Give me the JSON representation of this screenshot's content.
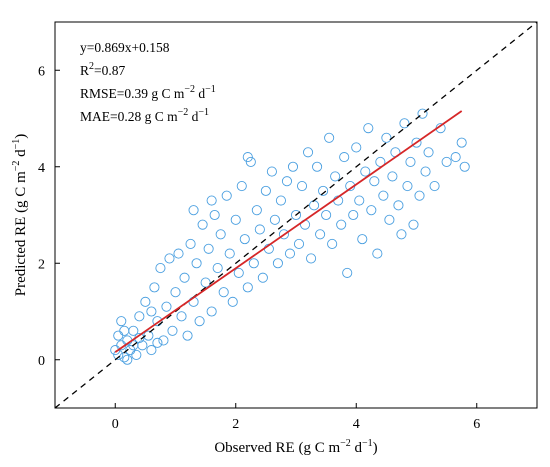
{
  "chart_data": {
    "type": "scatter",
    "x_label": [
      "Observed RE (g C m",
      "−2",
      " d",
      "−1",
      ")"
    ],
    "y_label": [
      "Predicted RE (g C m",
      "−2",
      " d",
      "−1",
      ")"
    ],
    "annotations": [
      [
        "y=0.869x+0.158"
      ],
      [
        "R",
        "2",
        "=0.87"
      ],
      [
        "RMSE=0.39 g C m",
        "−2",
        " d",
        "−1"
      ],
      [
        "MAE=0.28 g C m",
        "−2",
        " d",
        "−1"
      ]
    ],
    "xlim": [
      -1,
      7
    ],
    "ylim": [
      -1,
      7
    ],
    "xticks": [
      0,
      2,
      4,
      6
    ],
    "yticks": [
      0,
      2,
      4,
      6
    ],
    "series": [
      {
        "color": "#4a9fe0",
        "x": [
          0.05,
          0.1,
          0.15,
          0.2,
          0.25,
          0.3,
          0.1,
          0.35,
          0.4,
          0.45,
          0.5,
          0.55,
          0.6,
          0.65,
          0.7,
          0.75,
          0.8,
          0.85,
          0.9,
          0.95,
          1.0,
          1.05,
          1.1,
          1.15,
          1.2,
          1.25,
          1.3,
          1.35,
          1.4,
          1.45,
          1.5,
          1.55,
          1.6,
          1.65,
          1.7,
          1.75,
          1.8,
          1.85,
          1.9,
          1.95,
          2.0,
          2.05,
          2.1,
          2.15,
          2.2,
          2.25,
          2.3,
          2.35,
          2.4,
          2.45,
          2.5,
          2.55,
          2.6,
          2.65,
          2.7,
          2.75,
          2.8,
          2.85,
          2.9,
          2.95,
          3.0,
          3.05,
          3.1,
          3.15,
          3.2,
          3.25,
          3.3,
          3.35,
          3.4,
          3.45,
          3.5,
          3.55,
          3.6,
          3.65,
          3.7,
          3.75,
          3.8,
          3.85,
          3.9,
          3.95,
          4.0,
          4.05,
          4.1,
          4.15,
          4.2,
          4.25,
          4.3,
          4.35,
          4.4,
          4.45,
          4.5,
          4.55,
          4.6,
          4.65,
          4.7,
          4.75,
          4.8,
          4.85,
          4.9,
          4.95,
          5.0,
          5.05,
          5.1,
          5.15,
          5.2,
          5.3,
          5.4,
          5.5,
          5.65,
          5.75,
          5.8,
          0.05,
          0.2,
          0.3,
          0.0,
          0.15,
          0.4,
          0.6,
          0.7,
          1.3,
          2.2,
          1.6
        ],
        "values": [
          0.1,
          0.3,
          0.05,
          0.4,
          0.2,
          0.6,
          0.8,
          0.1,
          0.9,
          0.3,
          1.2,
          0.5,
          0.2,
          1.5,
          0.8,
          1.9,
          0.4,
          1.1,
          2.1,
          0.6,
          1.4,
          2.2,
          0.9,
          1.7,
          0.5,
          2.4,
          1.2,
          2.0,
          0.8,
          2.8,
          1.6,
          2.3,
          1.0,
          3.0,
          1.9,
          2.6,
          1.4,
          3.4,
          2.2,
          1.2,
          2.9,
          1.8,
          3.6,
          2.5,
          1.5,
          4.1,
          2.0,
          3.1,
          2.7,
          1.7,
          3.5,
          2.3,
          3.9,
          2.9,
          2.0,
          3.3,
          2.6,
          3.7,
          2.2,
          4.0,
          3.0,
          2.4,
          3.6,
          2.8,
          4.3,
          2.1,
          3.2,
          4.0,
          2.6,
          3.5,
          3.0,
          4.6,
          2.4,
          3.8,
          3.3,
          2.8,
          4.2,
          1.8,
          3.6,
          3.0,
          4.4,
          3.3,
          2.5,
          3.9,
          4.8,
          3.1,
          3.7,
          2.2,
          4.1,
          3.4,
          4.6,
          2.9,
          3.8,
          4.3,
          3.2,
          2.6,
          4.9,
          3.6,
          4.1,
          2.8,
          4.5,
          3.4,
          5.1,
          3.9,
          4.3,
          3.6,
          4.8,
          4.1,
          4.2,
          4.5,
          4.0,
          0.5,
          0.0,
          0.3,
          0.2,
          0.6,
          0.45,
          1.0,
          0.35,
          3.1,
          4.2,
          3.3
        ]
      }
    ],
    "lines": [
      {
        "x": [
          0,
          5.75
        ],
        "values": [
          0.158,
          5.155
        ],
        "color": "#d62728",
        "style": "solid"
      },
      {
        "x": [
          -1,
          7
        ],
        "values": [
          -1,
          7
        ],
        "color": "#000000",
        "style": "dashed"
      }
    ]
  }
}
